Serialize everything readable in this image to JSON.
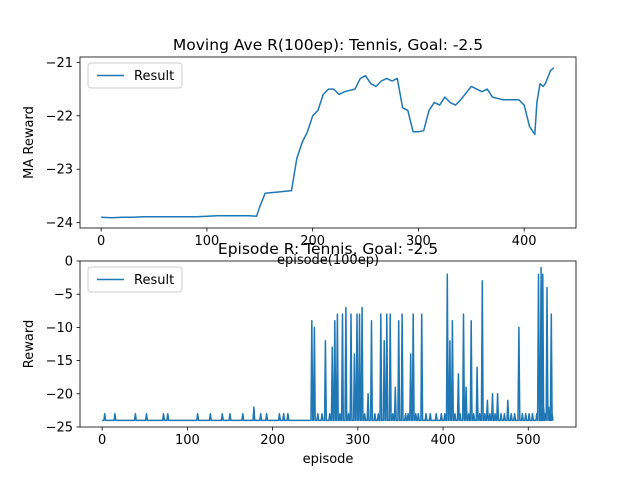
{
  "chart_data": [
    {
      "type": "line",
      "title": "Moving Ave R(100ep): Tennis, Goal: -2.5",
      "xlabel": "episode(100ep)",
      "ylabel": "MA Reward",
      "xlim": [
        -20,
        449
      ],
      "ylim": [
        -24.1,
        -20.9
      ],
      "xticks": [
        0,
        100,
        200,
        300,
        400
      ],
      "yticks": [
        -24,
        -23,
        -22,
        -21
      ],
      "legend": {
        "position": "top-left"
      },
      "grid": false,
      "series": [
        {
          "name": "Result",
          "color": "#1f77b4",
          "x": [
            0,
            10,
            20,
            30,
            40,
            50,
            60,
            70,
            80,
            90,
            100,
            110,
            120,
            130,
            140,
            147,
            150,
            155,
            160,
            165,
            170,
            175,
            180,
            185,
            190,
            195,
            200,
            205,
            210,
            215,
            220,
            225,
            230,
            240,
            245,
            250,
            255,
            260,
            265,
            270,
            275,
            280,
            285,
            290,
            295,
            300,
            305,
            310,
            315,
            320,
            325,
            330,
            335,
            340,
            350,
            355,
            360,
            365,
            370,
            380,
            390,
            395,
            400,
            405,
            410,
            412,
            415,
            418,
            420,
            425,
            428
          ],
          "y": [
            -23.9,
            -23.91,
            -23.9,
            -23.9,
            -23.89,
            -23.89,
            -23.89,
            -23.89,
            -23.89,
            -23.89,
            -23.88,
            -23.87,
            -23.87,
            -23.87,
            -23.87,
            -23.88,
            -23.7,
            -23.45,
            -23.44,
            -23.43,
            -23.42,
            -23.41,
            -23.4,
            -22.8,
            -22.5,
            -22.3,
            -22.0,
            -21.9,
            -21.6,
            -21.5,
            -21.5,
            -21.6,
            -21.55,
            -21.5,
            -21.3,
            -21.25,
            -21.4,
            -21.45,
            -21.35,
            -21.3,
            -21.35,
            -21.3,
            -21.85,
            -21.9,
            -22.3,
            -22.3,
            -22.28,
            -21.9,
            -21.75,
            -21.8,
            -21.65,
            -21.75,
            -21.8,
            -21.7,
            -21.45,
            -21.5,
            -21.55,
            -21.5,
            -21.65,
            -21.7,
            -21.7,
            -21.7,
            -21.8,
            -22.2,
            -22.35,
            -21.75,
            -21.4,
            -21.45,
            -21.4,
            -21.15,
            -21.1
          ]
        }
      ]
    },
    {
      "type": "line",
      "title": "Episode R: Tennis, Goal: -2.5",
      "xlabel": "episode",
      "ylabel": "Reward",
      "xlim": [
        -26,
        556
      ],
      "ylim": [
        -25,
        0
      ],
      "xticks": [
        0,
        100,
        200,
        300,
        400,
        500
      ],
      "yticks": [
        0,
        -5,
        -10,
        -15,
        -20,
        -25
      ],
      "legend": {
        "position": "top-left"
      },
      "grid": false,
      "series": [
        {
          "name": "Result",
          "color": "#1f77b4",
          "baseline": -24,
          "spikes": [
            [
              3,
              -23
            ],
            [
              15,
              -23
            ],
            [
              39,
              -23
            ],
            [
              52,
              -23
            ],
            [
              72,
              -23
            ],
            [
              77,
              -23
            ],
            [
              112,
              -23
            ],
            [
              127,
              -23
            ],
            [
              141,
              -23
            ],
            [
              150,
              -23
            ],
            [
              165,
              -23
            ],
            [
              178,
              -22
            ],
            [
              186,
              -23
            ],
            [
              193,
              -23
            ],
            [
              208,
              -23
            ],
            [
              213,
              -23
            ],
            [
              218,
              -23
            ],
            [
              246,
              -9
            ],
            [
              249,
              -10
            ],
            [
              253,
              -23
            ],
            [
              258,
              -23
            ],
            [
              262,
              -12
            ],
            [
              267,
              -23
            ],
            [
              270,
              -13
            ],
            [
              273,
              -9
            ],
            [
              276,
              -8
            ],
            [
              279,
              -23
            ],
            [
              282,
              -8
            ],
            [
              286,
              -7
            ],
            [
              289,
              -23
            ],
            [
              292,
              -8
            ],
            [
              296,
              -14
            ],
            [
              299,
              -8
            ],
            [
              302,
              -8
            ],
            [
              305,
              -7
            ],
            [
              308,
              -23
            ],
            [
              312,
              -20
            ],
            [
              316,
              -9
            ],
            [
              320,
              -23
            ],
            [
              324,
              -23
            ],
            [
              327,
              -8
            ],
            [
              331,
              -12
            ],
            [
              334,
              -8
            ],
            [
              338,
              -8
            ],
            [
              341,
              -23
            ],
            [
              344,
              -19
            ],
            [
              348,
              -9
            ],
            [
              352,
              -8
            ],
            [
              356,
              -23
            ],
            [
              359,
              -23
            ],
            [
              362,
              -14
            ],
            [
              365,
              -8
            ],
            [
              368,
              -23
            ],
            [
              371,
              -23
            ],
            [
              375,
              -8
            ],
            [
              380,
              -23
            ],
            [
              385,
              -23
            ],
            [
              392,
              -23
            ],
            [
              398,
              -23
            ],
            [
              402,
              -23
            ],
            [
              405,
              -2
            ],
            [
              408,
              -12
            ],
            [
              411,
              -9
            ],
            [
              414,
              -23
            ],
            [
              418,
              -17
            ],
            [
              420,
              -23
            ],
            [
              424,
              -8
            ],
            [
              427,
              -19
            ],
            [
              430,
              -23
            ],
            [
              433,
              -9
            ],
            [
              436,
              -23
            ],
            [
              440,
              -16
            ],
            [
              443,
              -23
            ],
            [
              446,
              -3
            ],
            [
              449,
              -23
            ],
            [
              452,
              -21
            ],
            [
              455,
              -23
            ],
            [
              458,
              -20
            ],
            [
              461,
              -23
            ],
            [
              464,
              -20
            ],
            [
              468,
              -23
            ],
            [
              472,
              -23
            ],
            [
              476,
              -21
            ],
            [
              480,
              -23
            ],
            [
              484,
              -23
            ],
            [
              489,
              -10
            ],
            [
              493,
              -23
            ],
            [
              497,
              -23
            ],
            [
              501,
              -23
            ],
            [
              505,
              -23
            ],
            [
              510,
              -23
            ],
            [
              512,
              -2
            ],
            [
              514,
              -22
            ],
            [
              515,
              -1
            ],
            [
              517,
              -2
            ],
            [
              518,
              -22
            ],
            [
              520,
              -23
            ],
            [
              522,
              -4
            ],
            [
              524,
              -22
            ],
            [
              527,
              -8
            ],
            [
              528,
              -23
            ]
          ]
        }
      ]
    }
  ]
}
